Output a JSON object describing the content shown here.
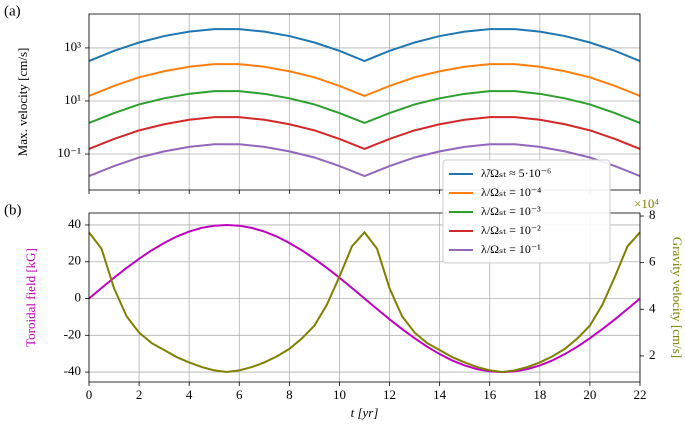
{
  "chart_data": [
    {
      "type": "line",
      "panel_label": "(a)",
      "ylabel": "Max. velocity [cm/s]",
      "x": [
        0,
        1,
        2,
        3,
        4,
        5,
        6,
        7,
        8,
        9,
        10,
        11,
        12,
        13,
        14,
        15,
        16,
        17,
        18,
        19,
        20,
        21,
        22
      ],
      "xlim": [
        0,
        22
      ],
      "xticks": [
        0,
        2,
        4,
        6,
        8,
        10,
        12,
        14,
        16,
        18,
        20,
        22
      ],
      "ylim": [
        0.0044,
        19000
      ],
      "log_y": true,
      "yticks": [
        {
          "value": 0.1,
          "label": "10⁻¹"
        },
        {
          "value": 10,
          "label": "10¹"
        },
        {
          "value": 1000,
          "label": "10³"
        }
      ],
      "grid": true,
      "legend": "lower right",
      "series": [
        {
          "name": "λ̃/Ωₛₜ ≈ 5·10⁻⁶",
          "color": "#1f77b4",
          "values": [
            320,
            780,
            1600,
            2800,
            4100,
            5100,
            5100,
            4100,
            2800,
            1600,
            780,
            320,
            780,
            1600,
            2800,
            4100,
            5100,
            5100,
            4100,
            2800,
            1600,
            780,
            320
          ]
        },
        {
          "name": "λ/Ωₛₜ = 10⁻⁴",
          "color": "#ff7f0e",
          "values": [
            15.5,
            37,
            78,
            132,
            195,
            245,
            245,
            195,
            132,
            78,
            37,
            15.5,
            37,
            78,
            132,
            195,
            245,
            245,
            195,
            132,
            78,
            37,
            15.5
          ]
        },
        {
          "name": "λ/Ωₛₜ = 10⁻³",
          "color": "#2ca02c",
          "values": [
            1.48,
            3.5,
            7.4,
            12.6,
            18.6,
            23.4,
            23.4,
            18.6,
            12.6,
            7.4,
            3.5,
            1.48,
            3.5,
            7.4,
            12.6,
            18.6,
            23.4,
            23.4,
            18.6,
            12.6,
            7.4,
            3.5,
            1.48
          ]
        },
        {
          "name": "λ/Ωₛₜ = 10⁻²",
          "color": "#d62728",
          "values": [
            0.155,
            0.37,
            0.78,
            1.32,
            1.95,
            2.45,
            2.45,
            1.95,
            1.32,
            0.78,
            0.37,
            0.155,
            0.37,
            0.78,
            1.32,
            1.95,
            2.45,
            2.45,
            1.95,
            1.32,
            0.78,
            0.37,
            0.155
          ]
        },
        {
          "name": "λ/Ωₛₜ = 10⁻¹",
          "color": "#9467bd",
          "values": [
            0.0148,
            0.035,
            0.074,
            0.126,
            0.186,
            0.234,
            0.234,
            0.186,
            0.126,
            0.074,
            0.035,
            0.0148,
            0.035,
            0.074,
            0.126,
            0.186,
            0.234,
            0.234,
            0.186,
            0.126,
            0.074,
            0.035,
            0.0148
          ]
        }
      ]
    },
    {
      "type": "line",
      "panel_label": "(b)",
      "xlabel": "t [yr]",
      "ylabel": "Toroidal field [kG]",
      "ylabel_color": "#c000c0",
      "y2label": "Gravity velocity [cm/s]",
      "y2label_color": "#808000",
      "y2_offset": "×10⁴",
      "x": [
        0,
        0.5,
        1,
        1.5,
        2,
        2.5,
        3,
        3.5,
        4,
        4.5,
        5,
        5.5,
        6,
        6.5,
        7,
        7.5,
        8,
        8.5,
        9,
        9.5,
        10,
        10.5,
        11,
        11.5,
        12,
        12.5,
        13,
        13.5,
        14,
        14.5,
        15,
        15.5,
        16,
        16.5,
        17,
        17.5,
        18,
        18.5,
        19,
        19.5,
        20,
        20.5,
        21,
        21.5,
        22
      ],
      "xlim": [
        0,
        22
      ],
      "xticks": [
        0,
        2,
        4,
        6,
        8,
        10,
        12,
        14,
        16,
        18,
        20,
        22
      ],
      "ylim": [
        -45.4,
        46.5
      ],
      "yticks": [
        -40,
        -20,
        0,
        20,
        40
      ],
      "y2lim": [
        0.88,
        8.13
      ],
      "y2ticks": [
        2,
        4,
        6,
        8
      ],
      "grid": true,
      "series": [
        {
          "color": "#c000c0",
          "values": [
            0,
            5.7,
            11.3,
            16.6,
            21.6,
            26.2,
            30.2,
            33.7,
            36.4,
            38.4,
            39.6,
            40,
            39.6,
            38.4,
            36.4,
            33.7,
            30.2,
            26.2,
            21.6,
            16.6,
            11.3,
            5.7,
            0,
            -5.7,
            -11.3,
            -16.6,
            -21.6,
            -26.2,
            -30.2,
            -33.7,
            -36.4,
            -38.4,
            -39.6,
            -40,
            -39.6,
            -38.4,
            -36.4,
            -33.7,
            -30.2,
            -26.2,
            -21.6,
            -16.6,
            -11.3,
            -5.7,
            0
          ]
        },
        {
          "color": "#808000",
          "axis": "y2",
          "values": [
            7.3,
            6.6,
            4.9,
            3.7,
            3.0,
            2.55,
            2.25,
            1.95,
            1.72,
            1.52,
            1.38,
            1.31,
            1.38,
            1.52,
            1.72,
            1.98,
            2.3,
            2.75,
            3.3,
            4.2,
            5.4,
            6.7,
            7.3,
            6.6,
            4.9,
            3.7,
            3.0,
            2.55,
            2.25,
            1.95,
            1.72,
            1.52,
            1.38,
            1.31,
            1.38,
            1.52,
            1.72,
            1.98,
            2.3,
            2.75,
            3.3,
            4.2,
            5.4,
            6.7,
            7.3
          ]
        }
      ]
    }
  ]
}
